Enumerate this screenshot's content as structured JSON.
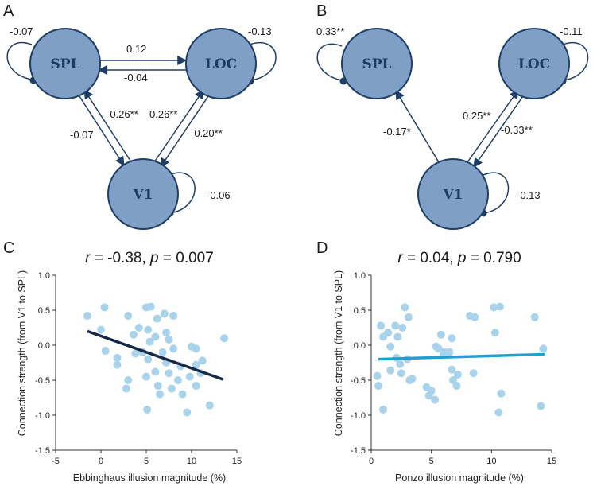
{
  "colors": {
    "node_fill": "#7f9fc6",
    "node_stroke": "#1f3e66",
    "arrow": "#1f3e66",
    "point": "#a9d3ea",
    "fit_C": "#14284a",
    "fit_D": "#1f9fd2",
    "axis": "#333333"
  },
  "network_A": {
    "letter": "A",
    "nodes": [
      {
        "id": "SPL",
        "label": "SPL",
        "self_weight": "-0.07"
      },
      {
        "id": "LOC",
        "label": "LOC",
        "self_weight": "-0.13"
      },
      {
        "id": "V1",
        "label": "V1",
        "self_weight": "-0.06"
      }
    ],
    "edges": [
      {
        "from": "SPL",
        "to": "LOC",
        "weight": "0.12"
      },
      {
        "from": "LOC",
        "to": "SPL",
        "weight": "-0.04"
      },
      {
        "from": "SPL",
        "to": "V1",
        "weight": "-0.07"
      },
      {
        "from": "V1",
        "to": "SPL",
        "weight": "-0.26**"
      },
      {
        "from": "V1",
        "to": "LOC",
        "weight": "0.26**"
      },
      {
        "from": "LOC",
        "to": "V1",
        "weight": "-0.20**"
      }
    ]
  },
  "network_B": {
    "letter": "B",
    "nodes": [
      {
        "id": "SPL",
        "label": "SPL",
        "self_weight": "0.33**"
      },
      {
        "id": "LOC",
        "label": "LOC",
        "self_weight": "-0.11"
      },
      {
        "id": "V1",
        "label": "V1",
        "self_weight": "-0.13"
      }
    ],
    "edges": [
      {
        "from": "V1",
        "to": "SPL",
        "weight": "-0.17*"
      },
      {
        "from": "V1",
        "to": "LOC",
        "weight": "0.25**"
      },
      {
        "from": "LOC",
        "to": "V1",
        "weight": "-0.33**"
      }
    ]
  },
  "chart_data": [
    {
      "type": "scatter",
      "panel": "C",
      "title_r_symbol": "r",
      "title_r_value": " = -0.38, ",
      "title_p_symbol": "p",
      "title_p_value": " = 0.007",
      "xlabel": "Ebbinghaus illusion magnitude (%)",
      "ylabel": "Connection strength (from V1 to SPL)",
      "xlim": [
        -5,
        15
      ],
      "ylim": [
        -1.5,
        1.0
      ],
      "xticks": [
        "-5",
        "0",
        "5",
        "10",
        "15"
      ],
      "yticks": [
        "-1.5",
        "-1.0",
        "-0.5",
        "0.0",
        "0.5",
        "1.0"
      ],
      "fit": {
        "x": [
          -1.5,
          13.5
        ],
        "y": [
          0.2,
          -0.49
        ]
      },
      "points": [
        {
          "x": -1.5,
          "y": 0.42
        },
        {
          "x": 0.4,
          "y": 0.54
        },
        {
          "x": 0.0,
          "y": 0.22
        },
        {
          "x": 0.5,
          "y": -0.08
        },
        {
          "x": 1.8,
          "y": -0.18
        },
        {
          "x": 1.8,
          "y": -0.28
        },
        {
          "x": 3.0,
          "y": 0.42
        },
        {
          "x": 3.0,
          "y": -0.5
        },
        {
          "x": 2.8,
          "y": -0.62
        },
        {
          "x": 3.6,
          "y": 0.15
        },
        {
          "x": 3.8,
          "y": -0.12
        },
        {
          "x": 4.2,
          "y": 0.25
        },
        {
          "x": 4.6,
          "y": -0.1
        },
        {
          "x": 5.0,
          "y": 0.54
        },
        {
          "x": 5.5,
          "y": 0.55
        },
        {
          "x": 5.2,
          "y": 0.22
        },
        {
          "x": 5.4,
          "y": 0.05
        },
        {
          "x": 5.2,
          "y": -0.2
        },
        {
          "x": 5.0,
          "y": -0.45
        },
        {
          "x": 5.1,
          "y": -0.92
        },
        {
          "x": 6.0,
          "y": 0.12
        },
        {
          "x": 6.2,
          "y": 0.38
        },
        {
          "x": 6.0,
          "y": -0.38
        },
        {
          "x": 6.3,
          "y": -0.58
        },
        {
          "x": 6.5,
          "y": -0.7
        },
        {
          "x": 6.8,
          "y": -0.1
        },
        {
          "x": 7.0,
          "y": 0.45
        },
        {
          "x": 7.2,
          "y": 0.18
        },
        {
          "x": 7.5,
          "y": 0.08
        },
        {
          "x": 7.2,
          "y": -0.25
        },
        {
          "x": 7.5,
          "y": -0.4
        },
        {
          "x": 7.8,
          "y": -0.62
        },
        {
          "x": 8.0,
          "y": 0.42
        },
        {
          "x": 8.0,
          "y": -0.05
        },
        {
          "x": 8.5,
          "y": -0.5
        },
        {
          "x": 8.8,
          "y": -0.3
        },
        {
          "x": 9.0,
          "y": -0.7
        },
        {
          "x": 9.5,
          "y": -0.96
        },
        {
          "x": 9.8,
          "y": -0.45
        },
        {
          "x": 10.0,
          "y": -0.02
        },
        {
          "x": 10.5,
          "y": -0.05
        },
        {
          "x": 10.5,
          "y": -0.28
        },
        {
          "x": 10.5,
          "y": -0.58
        },
        {
          "x": 11.0,
          "y": -0.4
        },
        {
          "x": 11.2,
          "y": -0.22
        },
        {
          "x": 12.0,
          "y": -0.86
        },
        {
          "x": 13.6,
          "y": 0.1
        }
      ]
    },
    {
      "type": "scatter",
      "panel": "D",
      "title_r_symbol": "r",
      "title_r_value": " = 0.04, ",
      "title_p_symbol": "p",
      "title_p_value": " = 0.790",
      "xlabel": "Ponzo illusion magnitude (%)",
      "ylabel": "Connection strength (from V1 to SPL)",
      "xlim": [
        0,
        15
      ],
      "ylim": [
        -1.5,
        1.0
      ],
      "xticks": [
        "0",
        "5",
        "10",
        "15"
      ],
      "yticks": [
        "-1.5",
        "-1.0",
        "-0.5",
        "0.0",
        "0.5",
        "1.0"
      ],
      "fit": {
        "x": [
          0.6,
          14.4
        ],
        "y": [
          -0.2,
          -0.13
        ]
      },
      "points": [
        {
          "x": 0.5,
          "y": -0.44
        },
        {
          "x": 0.6,
          "y": -0.58
        },
        {
          "x": 0.8,
          "y": 0.28
        },
        {
          "x": 1.0,
          "y": 0.12
        },
        {
          "x": 1.0,
          "y": -0.92
        },
        {
          "x": 1.4,
          "y": 0.18
        },
        {
          "x": 1.6,
          "y": -0.02
        },
        {
          "x": 1.6,
          "y": -0.36
        },
        {
          "x": 2.0,
          "y": 0.28
        },
        {
          "x": 2.1,
          "y": -0.18
        },
        {
          "x": 2.4,
          "y": -0.27
        },
        {
          "x": 2.5,
          "y": -0.4
        },
        {
          "x": 2.6,
          "y": 0.25
        },
        {
          "x": 2.8,
          "y": 0.54
        },
        {
          "x": 3.0,
          "y": -0.2
        },
        {
          "x": 3.1,
          "y": 0.4
        },
        {
          "x": 3.2,
          "y": -0.5
        },
        {
          "x": 3.4,
          "y": -0.48
        },
        {
          "x": 4.6,
          "y": -0.6
        },
        {
          "x": 4.8,
          "y": -0.72
        },
        {
          "x": 5.0,
          "y": -0.65
        },
        {
          "x": 5.3,
          "y": -0.78
        },
        {
          "x": 5.4,
          "y": -0.02
        },
        {
          "x": 5.6,
          "y": -0.05
        },
        {
          "x": 5.8,
          "y": 0.15
        },
        {
          "x": 6.0,
          "y": -0.12
        },
        {
          "x": 6.3,
          "y": -0.12
        },
        {
          "x": 6.5,
          "y": -0.1
        },
        {
          "x": 6.7,
          "y": 0.1
        },
        {
          "x": 6.7,
          "y": -0.35
        },
        {
          "x": 6.8,
          "y": -0.5
        },
        {
          "x": 7.1,
          "y": -0.58
        },
        {
          "x": 7.2,
          "y": -0.42
        },
        {
          "x": 8.2,
          "y": 0.42
        },
        {
          "x": 8.5,
          "y": -0.4
        },
        {
          "x": 8.6,
          "y": 0.4
        },
        {
          "x": 10.2,
          "y": 0.54
        },
        {
          "x": 10.3,
          "y": 0.18
        },
        {
          "x": 10.6,
          "y": -0.96
        },
        {
          "x": 10.7,
          "y": 0.55
        },
        {
          "x": 10.8,
          "y": -0.69
        },
        {
          "x": 13.6,
          "y": 0.4
        },
        {
          "x": 14.1,
          "y": -0.87
        },
        {
          "x": 14.3,
          "y": -0.05
        },
        {
          "x": 6.1,
          "y": -0.1
        },
        {
          "x": 2.2,
          "y": 0.12
        }
      ]
    }
  ]
}
